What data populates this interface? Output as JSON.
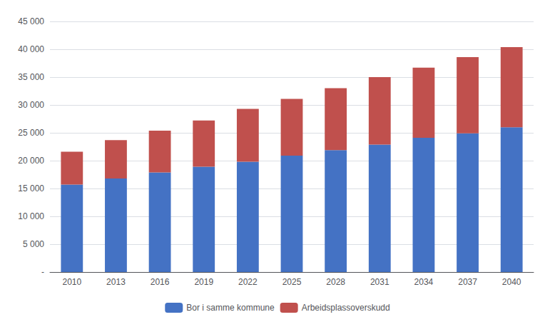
{
  "chart_data": {
    "type": "bar",
    "categories": [
      "2010",
      "2013",
      "2016",
      "2019",
      "2022",
      "2025",
      "2028",
      "2031",
      "2034",
      "2037",
      "2040"
    ],
    "series": [
      {
        "name": "Bor i samme kommune",
        "color": "#4472C4",
        "values": [
          15700,
          16800,
          17900,
          18900,
          19800,
          20900,
          21900,
          22900,
          24100,
          24900,
          26000
        ]
      },
      {
        "name": "Arbeidsplassoverskudd",
        "color": "#C0504D",
        "values": [
          5900,
          6900,
          7500,
          8300,
          9500,
          10200,
          11100,
          12100,
          12600,
          13700,
          14400
        ]
      }
    ],
    "stacked": true,
    "ylim": [
      0,
      45000
    ],
    "yticks": [
      {
        "value": 0,
        "label": "-"
      },
      {
        "value": 5000,
        "label": "5 000"
      },
      {
        "value": 10000,
        "label": "10 000"
      },
      {
        "value": 15000,
        "label": "15 000"
      },
      {
        "value": 20000,
        "label": "20 000"
      },
      {
        "value": 25000,
        "label": "25 000"
      },
      {
        "value": 30000,
        "label": "30 000"
      },
      {
        "value": 35000,
        "label": "35 000"
      },
      {
        "value": 40000,
        "label": "40 000"
      },
      {
        "value": 45000,
        "label": "45 000"
      }
    ],
    "grid": true,
    "legend": "bottom"
  }
}
